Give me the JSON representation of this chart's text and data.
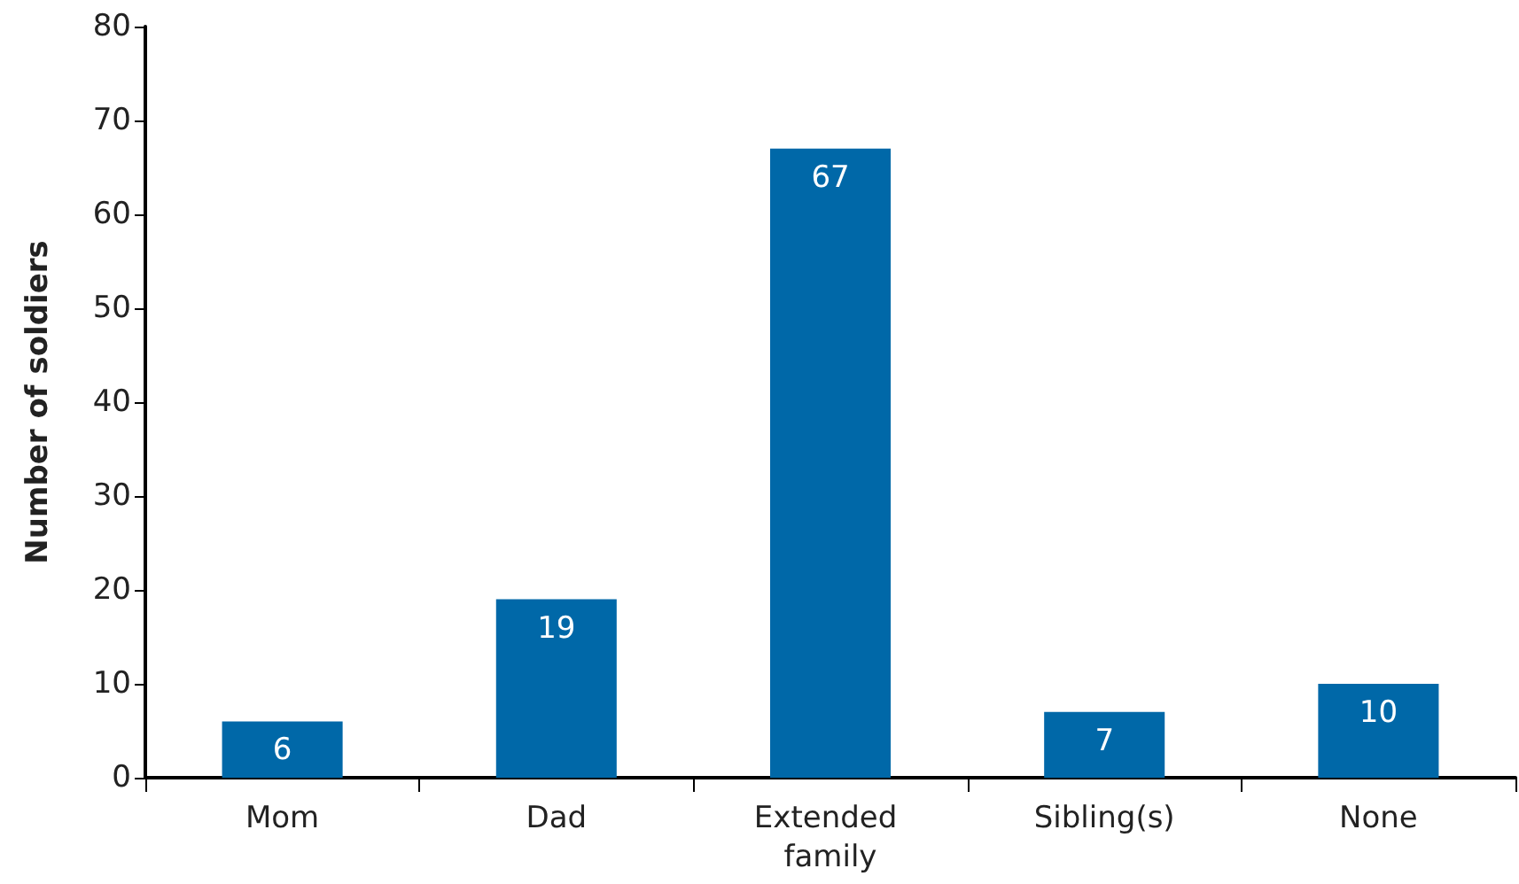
{
  "chart_data": {
    "type": "bar",
    "ylabel": "Number of soldiers",
    "categories": [
      "Mom",
      "Dad",
      "Extended family",
      "Sibling(s)",
      "None"
    ],
    "values": [
      6,
      19,
      67,
      7,
      10
    ],
    "color": "#0068a8",
    "ylim": [
      0,
      80
    ],
    "yticks": [
      0,
      10,
      20,
      30,
      40,
      50,
      60,
      70,
      80
    ],
    "grid": false,
    "data_labels": true
  }
}
